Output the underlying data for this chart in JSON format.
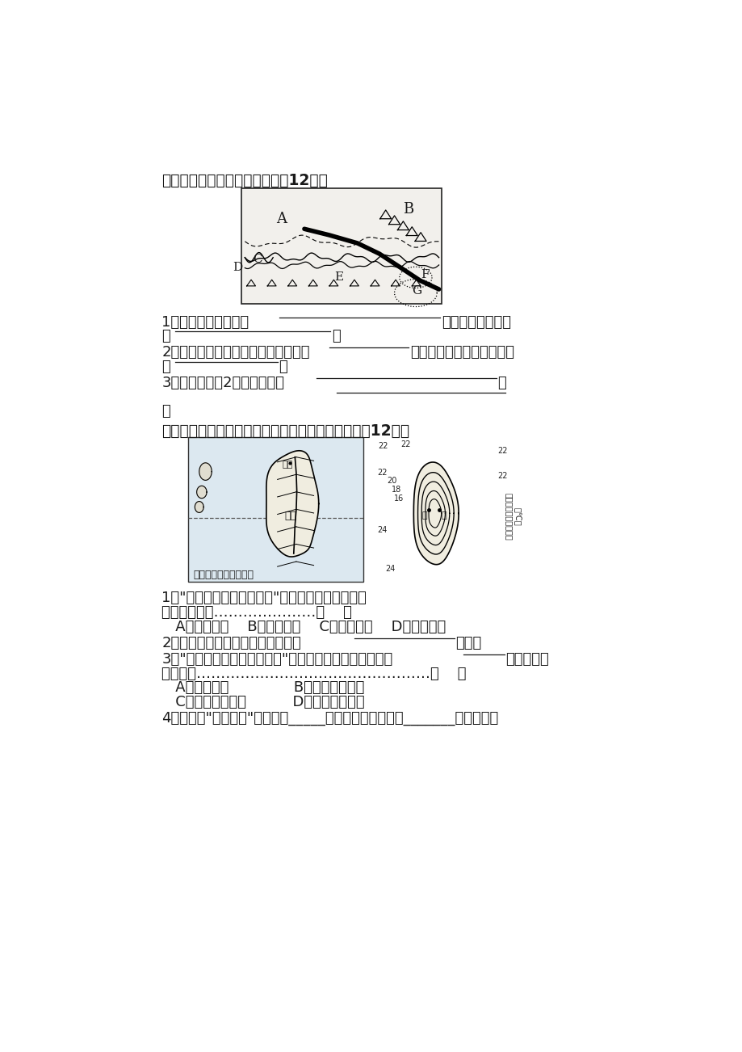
{
  "bg_color": "#ffffff",
  "text_color": "#1a1a1a",
  "section7_title": "七、读下图，回答下列问题：（12分）",
  "section7_q1": "1．图中该省的全称是",
  "section7_q1b": "。该省的地形特点",
  "section7_q1c": "是",
  "section7_q2": "2．限制该省发展农业最重要的问题是",
  "section7_q2b": "不足，其特有的灌溉设施叫",
  "section7_q2c": "做",
  "section7_q3": "3．写出该省的2个全国之最：",
  "section8_title": "八、台湾是祖国的宝岛，读下图，回答下列问题：（12分）",
  "section8_q1a": "1．台湾岛河流分布示意图显示，台湾岛西部河流",
  "section8_q1b": "的主要流向是…………………（    ）",
  "section8_q1c": "   A．自西向东    B．自南向北    C．自东向西    D．自北向南",
  "section8_q2a": "2．台湾岛河流短急，蕴藏着丰富的",
  "section8_q2b": "资源。",
  "section8_q3a": "3．台湾岛年平均气温分布图中甲、乙两地气温较低的是",
  "section8_q3b": "地。其主要",
  "section8_q3c": "原因是受…………………………………………（    ）",
  "section8_q3d": "   A．地势影响              B．纬度位置影响",
  "section8_q3e": "   C．经度位置影响          D．海陆位置影响",
  "section8_q4": "4．台湾有水果之乡之称。隔_____海峡与台湾省相望的_______省的居民尝"
}
